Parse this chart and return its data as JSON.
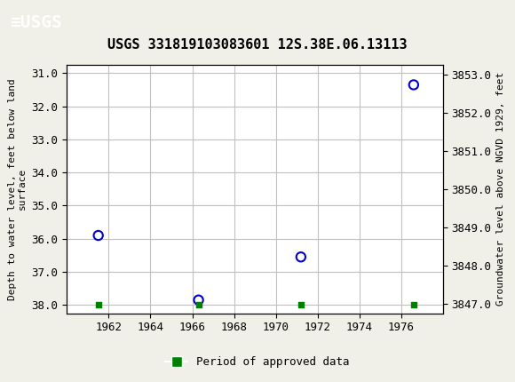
{
  "title": "USGS 331819103083601 12S.38E.06.13113",
  "ylabel_left": "Depth to water level, feet below land\nsurface",
  "ylabel_right": "Groundwater level above NGVD 1929, feet",
  "background_color": "#f0f0e8",
  "plot_bg_color": "#ffffff",
  "header_color": "#1a6e3c",
  "grid_color": "#c0c0c0",
  "data_points": [
    {
      "year": 1961.5,
      "depth": 35.9
    },
    {
      "year": 1966.3,
      "depth": 37.85
    },
    {
      "year": 1971.2,
      "depth": 36.55
    },
    {
      "year": 1976.6,
      "depth": 31.35
    }
  ],
  "approved_markers": [
    {
      "year": 1961.5,
      "depth": 38.0
    },
    {
      "year": 1966.3,
      "depth": 38.0
    },
    {
      "year": 1971.2,
      "depth": 38.0
    },
    {
      "year": 1976.6,
      "depth": 38.0
    }
  ],
  "xlim": [
    1960,
    1978
  ],
  "xticks": [
    1962,
    1964,
    1966,
    1968,
    1970,
    1972,
    1974,
    1976
  ],
  "ylim_left": [
    38.25,
    30.75
  ],
  "ylim_right": [
    3846.75,
    3853.25
  ],
  "yticks_left": [
    31.0,
    32.0,
    33.0,
    34.0,
    35.0,
    36.0,
    37.0,
    38.0
  ],
  "yticks_right": [
    3847.0,
    3848.0,
    3849.0,
    3850.0,
    3851.0,
    3852.0,
    3853.0
  ],
  "marker_color": "#0000cc",
  "approved_color": "#008000",
  "legend_label": "Period of approved data",
  "font_family": "monospace"
}
